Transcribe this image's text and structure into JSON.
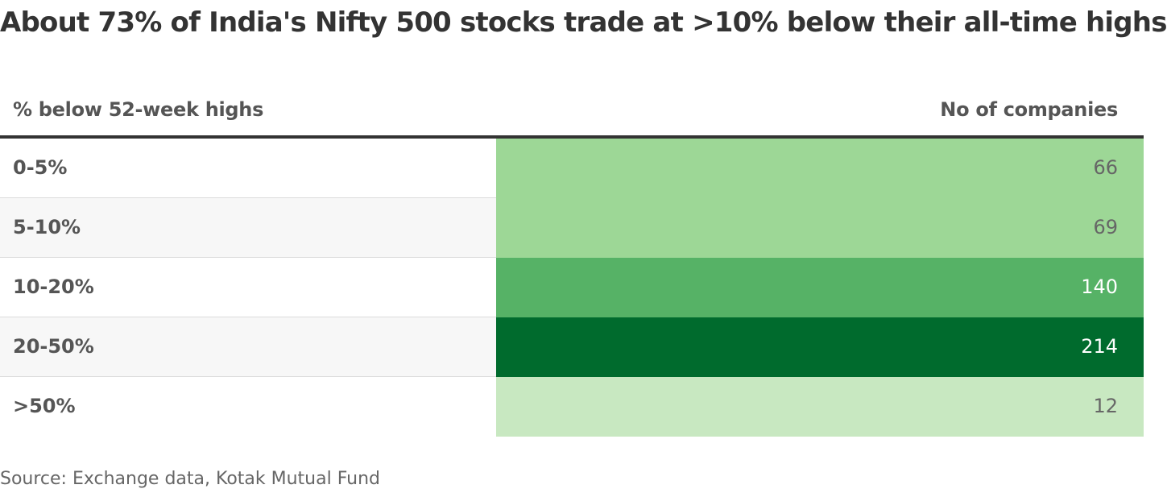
{
  "title": "About 73% of India's Nifty 500 stocks trade at >10% below their all-time highs",
  "table": {
    "headers": [
      "% below 52-week highs",
      "No of companies"
    ],
    "rows": [
      {
        "label": "0-5%",
        "value": 66,
        "color": "#9dd796",
        "text_color": "#666666"
      },
      {
        "label": "5-10%",
        "value": 69,
        "color": "#9dd796",
        "text_color": "#666666"
      },
      {
        "label": "10-20%",
        "value": 140,
        "color": "#56b266",
        "text_color": "#ffffff"
      },
      {
        "label": "20-50%",
        "value": 214,
        "color": "#006b2d",
        "text_color": "#ffffff"
      },
      {
        "label": ">50%",
        "value": 12,
        "color": "#c8e8c1",
        "text_color": "#666666"
      }
    ]
  },
  "source": "Source: Exchange data, Kotak Mutual Fund"
}
